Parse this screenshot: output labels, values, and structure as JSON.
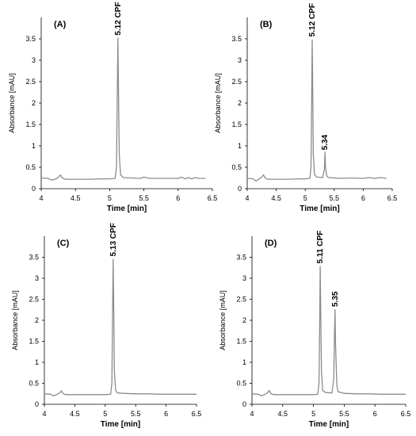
{
  "chart_data": [
    {
      "type": "line",
      "panel_label": "(A)",
      "xlabel": "Time [min]",
      "ylabel": "Absorbance [mAU]",
      "xlim": [
        4,
        6.5
      ],
      "ylim": [
        0,
        4
      ],
      "xticks": [
        "4",
        "4.5",
        "5",
        "5.5",
        "6",
        "6.5"
      ],
      "yticks": [
        "0",
        "0.5",
        "1",
        "1.5",
        "2",
        "2.5",
        "3",
        "3.5"
      ],
      "grid": false,
      "series": [
        {
          "color": "#8c8c8c",
          "x": [
            4.0,
            4.1,
            4.15,
            4.2,
            4.25,
            4.28,
            4.31,
            4.35,
            4.5,
            4.7,
            4.9,
            5.0,
            5.08,
            5.1,
            5.11,
            5.12,
            5.13,
            5.14,
            5.16,
            5.2,
            5.3,
            5.45,
            5.5,
            5.55,
            5.6,
            5.8,
            6.0,
            6.05,
            6.1,
            6.15,
            6.2,
            6.25,
            6.3,
            6.4
          ],
          "y": [
            0.25,
            0.24,
            0.2,
            0.22,
            0.26,
            0.32,
            0.25,
            0.22,
            0.22,
            0.22,
            0.23,
            0.23,
            0.24,
            0.5,
            2.0,
            3.52,
            2.2,
            0.8,
            0.32,
            0.26,
            0.25,
            0.24,
            0.27,
            0.25,
            0.24,
            0.24,
            0.24,
            0.27,
            0.23,
            0.26,
            0.23,
            0.26,
            0.24,
            0.24
          ]
        }
      ],
      "annotations": [
        {
          "text": "5.12 CPF",
          "x": 5.12,
          "y": 3.58
        }
      ]
    },
    {
      "type": "line",
      "panel_label": "(B)",
      "xlabel": "Time [min]",
      "ylabel": "Absorbance [mAU]",
      "xlim": [
        4,
        6.5
      ],
      "ylim": [
        0,
        4
      ],
      "xticks": [
        "4",
        "4.5",
        "5",
        "5.5",
        "6",
        "6.5"
      ],
      "yticks": [
        "0",
        "0.5",
        "1",
        "1.5",
        "2",
        "2.5",
        "3",
        "3.5"
      ],
      "grid": false,
      "series": [
        {
          "color": "#8c8c8c",
          "x": [
            4.0,
            4.1,
            4.15,
            4.2,
            4.25,
            4.28,
            4.31,
            4.35,
            4.5,
            4.7,
            4.9,
            5.0,
            5.08,
            5.1,
            5.11,
            5.12,
            5.13,
            5.14,
            5.16,
            5.2,
            5.3,
            5.33,
            5.34,
            5.35,
            5.37,
            5.4,
            5.5,
            5.6,
            5.8,
            6.0,
            6.1,
            6.2,
            6.3,
            6.4
          ],
          "y": [
            0.24,
            0.23,
            0.18,
            0.22,
            0.27,
            0.32,
            0.25,
            0.22,
            0.22,
            0.22,
            0.23,
            0.23,
            0.24,
            0.5,
            2.0,
            3.48,
            2.2,
            0.8,
            0.33,
            0.27,
            0.26,
            0.45,
            0.85,
            0.5,
            0.3,
            0.26,
            0.25,
            0.24,
            0.25,
            0.24,
            0.26,
            0.24,
            0.26,
            0.24
          ]
        }
      ],
      "annotations": [
        {
          "text": "5.12 CPF",
          "x": 5.12,
          "y": 3.55
        },
        {
          "text": "5.34",
          "x": 5.34,
          "y": 0.9
        }
      ]
    },
    {
      "type": "line",
      "panel_label": "(C)",
      "xlabel": "Time [min]",
      "ylabel": "Absorbance [mAU]",
      "xlim": [
        4,
        6.5
      ],
      "ylim": [
        0,
        4
      ],
      "xticks": [
        "4",
        "4.5",
        "5",
        "5.5",
        "6",
        "6.5"
      ],
      "yticks": [
        "0",
        "0.5",
        "1",
        "1.5",
        "2",
        "2.5",
        "3",
        "3.5"
      ],
      "grid": false,
      "series": [
        {
          "color": "#8c8c8c",
          "x": [
            4.0,
            4.1,
            4.15,
            4.2,
            4.25,
            4.28,
            4.31,
            4.35,
            4.5,
            4.7,
            4.9,
            5.0,
            5.09,
            5.11,
            5.12,
            5.13,
            5.14,
            5.15,
            5.17,
            5.2,
            5.3,
            5.5,
            5.7,
            5.9,
            6.1,
            6.3,
            6.5
          ],
          "y": [
            0.25,
            0.24,
            0.2,
            0.23,
            0.27,
            0.32,
            0.25,
            0.23,
            0.23,
            0.23,
            0.23,
            0.23,
            0.24,
            0.5,
            2.0,
            3.45,
            2.2,
            0.8,
            0.33,
            0.27,
            0.26,
            0.25,
            0.25,
            0.24,
            0.24,
            0.24,
            0.24
          ]
        }
      ],
      "annotations": [
        {
          "text": "5.13 CPF",
          "x": 5.13,
          "y": 3.52
        }
      ]
    },
    {
      "type": "line",
      "panel_label": "(D)",
      "xlabel": "Time [min]",
      "ylabel": "Absorbance [mAU]",
      "xlim": [
        4,
        6.5
      ],
      "ylim": [
        0,
        4
      ],
      "xticks": [
        "4",
        "4.5",
        "5",
        "5.5",
        "6",
        "6.5"
      ],
      "yticks": [
        "0",
        "0.5",
        "1",
        "1.5",
        "2",
        "2.5",
        "3",
        "3.5"
      ],
      "grid": false,
      "series": [
        {
          "color": "#8c8c8c",
          "x": [
            4.0,
            4.1,
            4.15,
            4.2,
            4.25,
            4.28,
            4.31,
            4.35,
            4.5,
            4.7,
            4.9,
            5.0,
            5.07,
            5.09,
            5.1,
            5.11,
            5.12,
            5.13,
            5.15,
            5.2,
            5.3,
            5.33,
            5.34,
            5.35,
            5.36,
            5.38,
            5.4,
            5.5,
            5.7,
            5.9,
            6.1,
            6.3,
            6.5
          ],
          "y": [
            0.25,
            0.24,
            0.2,
            0.23,
            0.27,
            0.33,
            0.25,
            0.23,
            0.23,
            0.23,
            0.23,
            0.23,
            0.24,
            0.5,
            1.8,
            3.28,
            2.0,
            0.8,
            0.33,
            0.28,
            0.27,
            0.6,
            1.6,
            2.25,
            1.4,
            0.45,
            0.3,
            0.26,
            0.25,
            0.25,
            0.24,
            0.24,
            0.24
          ]
        }
      ],
      "annotations": [
        {
          "text": "5.11 CPF",
          "x": 5.11,
          "y": 3.35
        },
        {
          "text": "5.35",
          "x": 5.35,
          "y": 2.32
        }
      ]
    }
  ]
}
